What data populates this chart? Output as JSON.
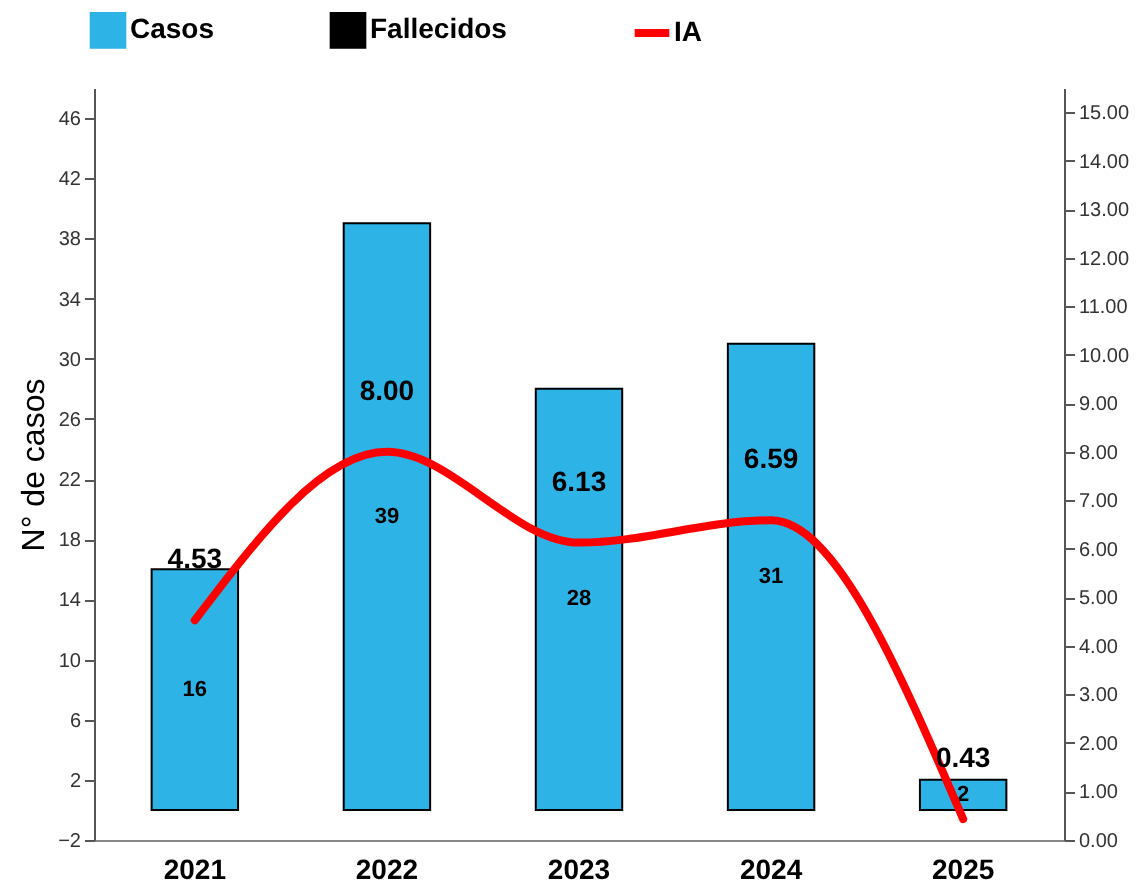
{
  "chart_data": {
    "type": "bar",
    "ylabel": "N° de casos",
    "categories": [
      "2021",
      "2022",
      "2023",
      "2024",
      "2025"
    ],
    "series": [
      {
        "name": "Casos",
        "color": "#2db3e6",
        "values": [
          16,
          39,
          28,
          31,
          2
        ]
      },
      {
        "name": "Fallecidos",
        "color": "#000000",
        "values": [
          0,
          0,
          0,
          0,
          0
        ],
        "value_labels": [
          null,
          null,
          null,
          null,
          null
        ]
      },
      {
        "name": "IA",
        "type": "line",
        "axis": "y2",
        "color": "#ff0000",
        "values": [
          4.53,
          8.0,
          6.13,
          6.59,
          0.43
        ],
        "value_labels": [
          "4.53",
          "8.00",
          "6.13",
          "6.59",
          "0.43"
        ]
      }
    ],
    "ylim": [
      -2,
      48
    ],
    "yticks": [
      -2,
      2,
      6,
      10,
      14,
      18,
      22,
      26,
      30,
      34,
      38,
      42,
      46
    ],
    "y2lim": [
      0,
      15.5
    ],
    "y2ticks": [
      {
        "value": 0,
        "label": "0.00"
      },
      {
        "value": 1,
        "label": "1.00"
      },
      {
        "value": 2,
        "label": "2.00"
      },
      {
        "value": 3,
        "label": "3.00"
      },
      {
        "value": 4,
        "label": "4.00"
      },
      {
        "value": 5,
        "label": "5.00"
      },
      {
        "value": 6,
        "label": "6.00"
      },
      {
        "value": 7,
        "label": "7.00"
      },
      {
        "value": 8,
        "label": "8.00"
      },
      {
        "value": 9,
        "label": "9.00"
      },
      {
        "value": 10,
        "label": "10.00"
      },
      {
        "value": 11,
        "label": "11.00"
      },
      {
        "value": 12,
        "label": "12.00"
      },
      {
        "value": 13,
        "label": "13.00"
      },
      {
        "value": 14,
        "label": "14.00"
      },
      {
        "value": 15,
        "label": "15.00"
      }
    ],
    "data_labels": true,
    "legend": "top",
    "grid": false
  }
}
